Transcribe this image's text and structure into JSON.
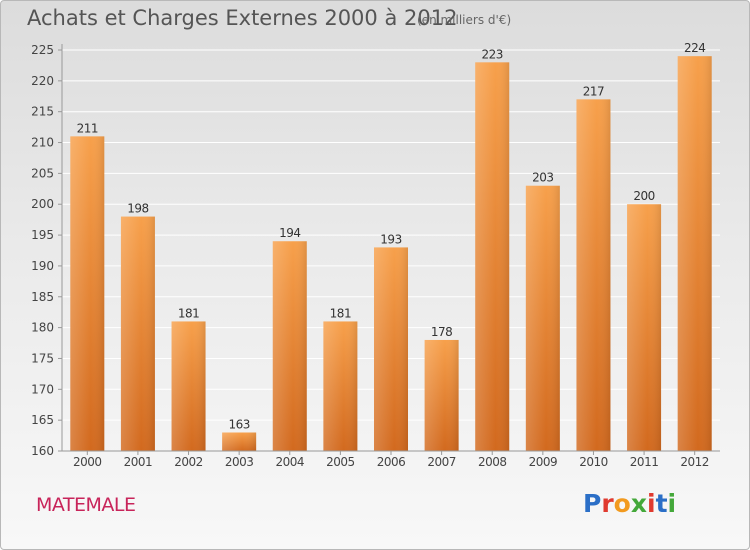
{
  "header": {
    "title": "Achats et Charges Externes 2000 à 2012",
    "unit": "(en milliers d'€)"
  },
  "footer": {
    "commune": "MATEMALE",
    "logo": "Proxiti"
  },
  "colors": {
    "bar_top": "#f7a04b",
    "bar_bottom": "#d2691e",
    "grid": "#ffffff",
    "axis": "#999999",
    "commune": "#c8245a"
  },
  "logo_letter_colors": [
    "#2b6fc7",
    "#e03a2f",
    "#f29a1e",
    "#44a83a",
    "#e03a2f",
    "#2b6fc7",
    "#44a83a"
  ],
  "chart_data": {
    "type": "bar",
    "title": "Achats et Charges Externes 2000 à 2012",
    "subtitle": "(en milliers d'€)",
    "categories": [
      "2000",
      "2001",
      "2002",
      "2003",
      "2004",
      "2005",
      "2006",
      "2007",
      "2008",
      "2009",
      "2010",
      "2011",
      "2012"
    ],
    "values": [
      211,
      198,
      181,
      163,
      194,
      181,
      193,
      178,
      223,
      203,
      217,
      200,
      224
    ],
    "ylim": [
      160,
      225
    ],
    "yticks": [
      160,
      165,
      170,
      175,
      180,
      185,
      190,
      195,
      200,
      205,
      210,
      215,
      220,
      225
    ],
    "grid": true,
    "data_labels": true
  }
}
